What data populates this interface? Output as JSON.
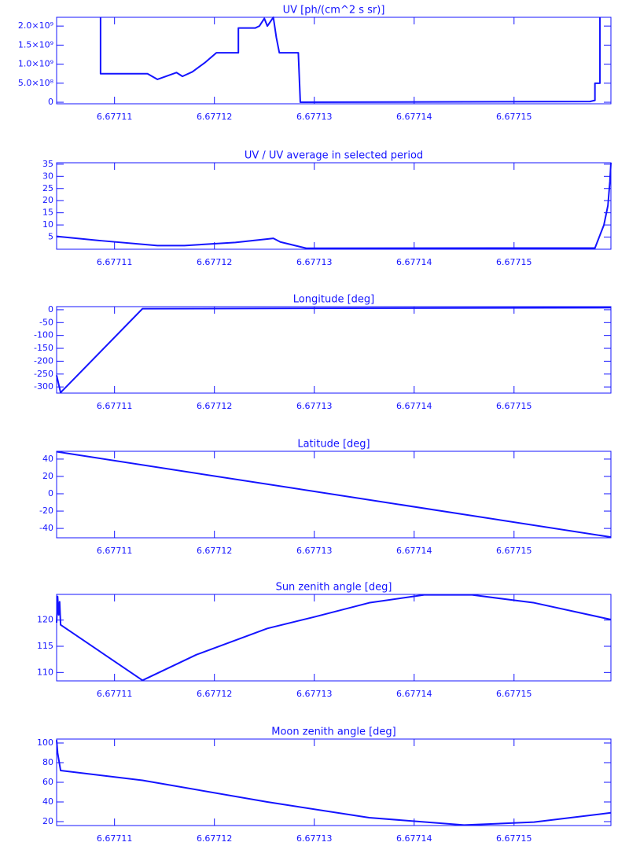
{
  "chart_data": [
    {
      "type": "line",
      "title": "UV [ph/(cm^2 s sr)]",
      "color": "#1414ff",
      "x": [
        6.6771086,
        6.6771086,
        6.6771133,
        6.6771143,
        6.6771162,
        6.6771168,
        6.6771178,
        6.6771191,
        6.6771202,
        6.6771224,
        6.6771224,
        6.6771241,
        6.6771245,
        6.677125,
        6.6771253,
        6.6771259,
        6.6771262,
        6.6771265,
        6.6771284,
        6.6771286,
        6.6771576,
        6.6771581,
        6.6771581,
        6.6771586,
        6.6771586
      ],
      "values": [
        2230000000,
        750000000,
        750000000,
        600000000,
        780000000,
        680000000,
        800000000,
        1050000000,
        1300000000,
        1300000000,
        1950000000,
        1950000000,
        2000000000,
        2200000000,
        2000000000,
        2230000000,
        1700000000,
        1300000000,
        1300000000,
        0,
        20000000,
        50000000,
        500000000,
        500000000,
        2230000000
      ],
      "xlim": [
        6.6771042,
        6.6771597
      ],
      "xticks": [
        6.67711,
        6.67712,
        6.67713,
        6.67714,
        6.67715
      ],
      "ylim": [
        -40000000,
        2230000000
      ],
      "yticks": [
        0,
        {
          "value": 500000000,
          "label": "5.0×10⁸"
        },
        {
          "value": 1000000000,
          "label": "1.0×10⁹"
        },
        {
          "value": 1500000000,
          "label": "1.5×10⁹"
        },
        {
          "value": 2000000000,
          "label": "2.0×10⁹"
        }
      ]
    },
    {
      "type": "line",
      "title": "UV / UV average in selected period",
      "color": "#1414ff",
      "x": [
        6.6771042,
        6.6771087,
        6.6771143,
        6.677117,
        6.6771221,
        6.6771253,
        6.6771259,
        6.6771266,
        6.6771292,
        6.6771581,
        6.677159,
        6.6771594,
        6.6771596,
        6.6771597
      ],
      "values": [
        5.3,
        3.5,
        1.5,
        1.5,
        2.8,
        4.2,
        4.5,
        3,
        0.4,
        0.5,
        10,
        18,
        28,
        35.6
      ],
      "xlim": [
        6.6771042,
        6.6771597
      ],
      "xticks": [
        6.67711,
        6.67712,
        6.67713,
        6.67714,
        6.67715
      ],
      "ylim": [
        0,
        35.6
      ],
      "yticks": [
        5,
        10,
        15,
        20,
        25,
        30,
        35
      ]
    },
    {
      "type": "line",
      "title": "Longitude [deg]",
      "color": "#1414ff",
      "x": [
        6.6771042,
        6.6771046,
        6.6771128,
        6.6771597
      ],
      "values": [
        -255,
        -322,
        4,
        8
      ],
      "xlim": [
        6.6771042,
        6.6771597
      ],
      "xticks": [
        6.67711,
        6.67712,
        6.67713,
        6.67714,
        6.67715
      ],
      "ylim": [
        -324,
        12
      ],
      "yticks": [
        -300,
        -250,
        -200,
        -150,
        -100,
        -50,
        0
      ]
    },
    {
      "type": "line",
      "title": "Latitude [deg]",
      "color": "#1414ff",
      "x": [
        6.6771042,
        6.6771597
      ],
      "values": [
        48.5,
        -50
      ],
      "xlim": [
        6.6771042,
        6.6771597
      ],
      "xticks": [
        6.67711,
        6.67712,
        6.67713,
        6.67714,
        6.67715
      ],
      "ylim": [
        -50.8,
        49
      ],
      "yticks": [
        -40,
        -20,
        0,
        20,
        40
      ]
    },
    {
      "type": "line",
      "title": "Sun zenith angle [deg]",
      "color": "#1414ff",
      "x": [
        6.6771042,
        6.6771043,
        6.6771044,
        6.6771045,
        6.6771046,
        6.6771128,
        6.6771182,
        6.6771253,
        6.67713,
        6.6771355,
        6.677141,
        6.6771458,
        6.677152,
        6.6771597
      ],
      "values": [
        119.5,
        124.5,
        121,
        123.5,
        119.1,
        108.5,
        113.4,
        118.4,
        120.6,
        123.3,
        124.8,
        124.8,
        123.3,
        120.1
      ],
      "xlim": [
        6.6771042,
        6.6771597
      ],
      "xticks": [
        6.67711,
        6.67712,
        6.67713,
        6.67714,
        6.67715
      ],
      "ylim": [
        108.4,
        124.9
      ],
      "yticks": [
        110,
        115,
        120
      ]
    },
    {
      "type": "line",
      "title": "Moon zenith angle [deg]",
      "color": "#1414ff",
      "x": [
        6.6771042,
        6.6771043,
        6.6771046,
        6.6771128,
        6.6771253,
        6.6771355,
        6.677145,
        6.677152,
        6.6771597
      ],
      "values": [
        103,
        90,
        72,
        62,
        40,
        24,
        16.5,
        19.5,
        29
      ],
      "xlim": [
        6.6771042,
        6.6771597
      ],
      "xticks": [
        6.67711,
        6.67712,
        6.67713,
        6.67714,
        6.67715
      ],
      "ylim": [
        16,
        104
      ],
      "yticks": [
        20,
        40,
        60,
        80,
        100
      ]
    }
  ]
}
